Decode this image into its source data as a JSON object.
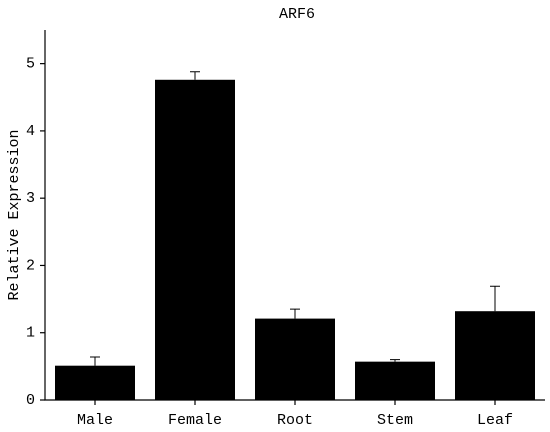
{
  "chart_data": {
    "type": "bar",
    "title": "ARF6",
    "y_label": "Relative Expression",
    "categories": [
      "Male",
      "Female",
      "Root",
      "Stem",
      "Leaf"
    ],
    "values": [
      0.51,
      4.76,
      1.21,
      0.57,
      1.32
    ],
    "errors": [
      0.13,
      0.12,
      0.14,
      0.03,
      0.37
    ],
    "color": "#000000",
    "ylim": [
      0,
      5.5
    ],
    "yticks": [
      0,
      1,
      2,
      3,
      4,
      5
    ],
    "grid": false
  }
}
